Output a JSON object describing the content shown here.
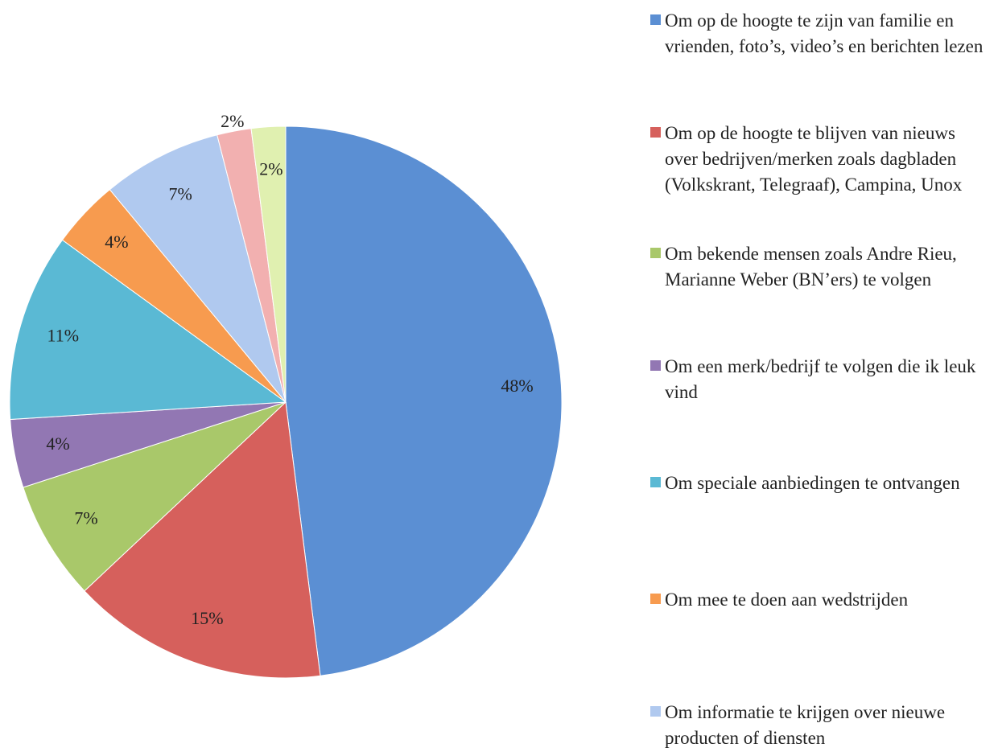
{
  "chart_data": {
    "type": "pie",
    "categories": [
      "Om op de hoogte te zijn van familie en vrienden, foto’s, video’s en berichten lezen",
      "Om op de hoogte te blijven van nieuws over bedrijven/merken zoals dagbladen (Volkskrant, Telegraaf), Campina, Unox",
      "Om bekende mensen zoals Andre Rieu, Marianne Weber (BN’ers) te volgen",
      "Om een merk/bedrijf te volgen die ik leuk vind",
      "Om speciale aanbiedingen te ontvangen",
      "Om mee te doen aan wedstrijden",
      "Om informatie te krijgen over nieuwe producten of diensten",
      null,
      null
    ],
    "values": [
      48,
      15,
      7,
      4,
      11,
      4,
      7,
      2,
      2
    ],
    "value_labels": [
      "48%",
      "15%",
      "7%",
      "4%",
      "11%",
      "4%",
      "7%",
      "2%",
      "2%"
    ],
    "colors": [
      "#5b8fd3",
      "#d6605c",
      "#a9c86a",
      "#9277b3",
      "#5ab9d4",
      "#f79b4f",
      "#b0c9ef",
      "#f2b0b0",
      "#e0f0b0"
    ]
  }
}
